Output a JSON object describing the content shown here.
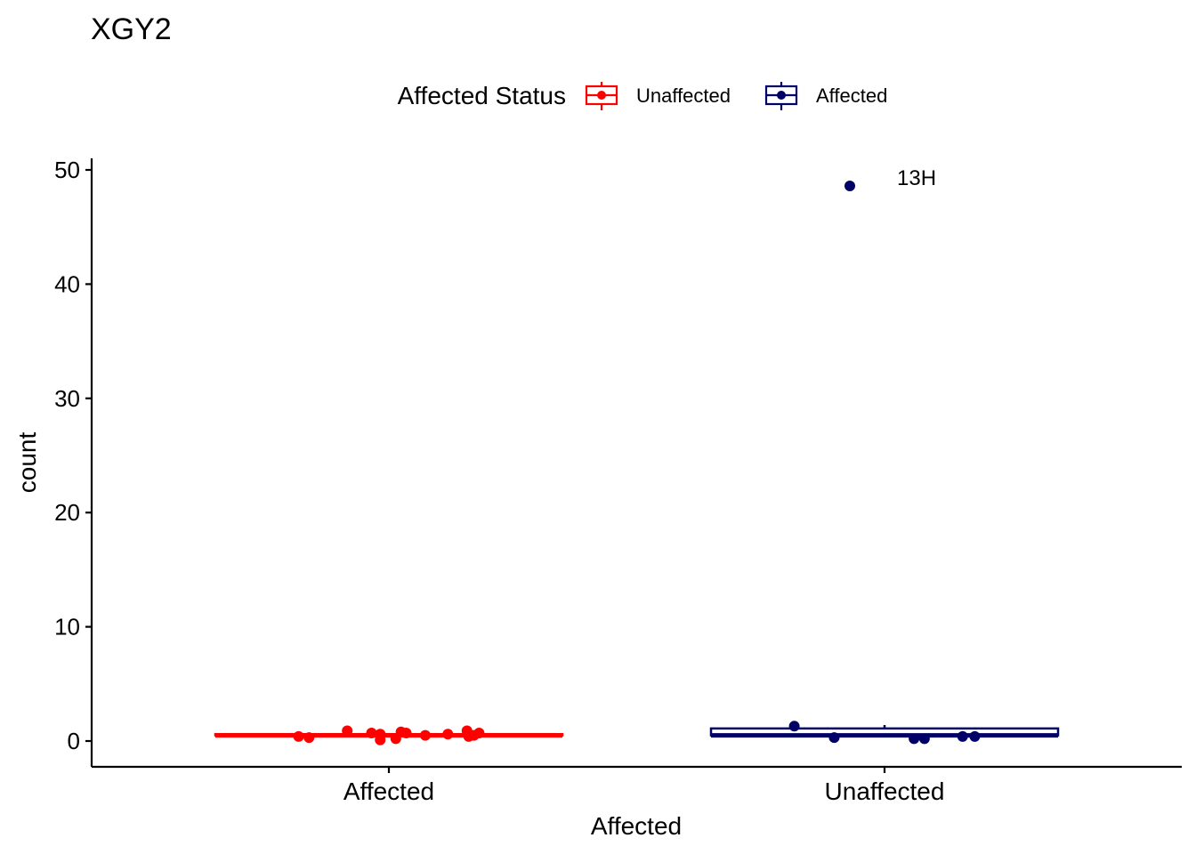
{
  "chart_data": {
    "type": "boxplot",
    "title": "XGY2",
    "xlabel": "Affected",
    "ylabel": "count",
    "ylim": [
      -2.2,
      51
    ],
    "yticks": [
      0,
      10,
      20,
      30,
      40,
      50
    ],
    "categories": [
      "Affected",
      "Unaffected"
    ],
    "legend": {
      "title": "Affected Status",
      "position": "top",
      "entries": [
        {
          "label": "Unaffected",
          "color": "#ff0000"
        },
        {
          "label": "Affected",
          "color": "#000066"
        }
      ]
    },
    "boxes": [
      {
        "category": "Affected",
        "status": "Unaffected",
        "color": "#ff0000",
        "q1": 0.5,
        "median": 0.5,
        "q3": 0.6,
        "whisker_low": 0.5,
        "whisker_high": 0.6
      },
      {
        "category": "Unaffected",
        "status": "Affected",
        "color": "#000066",
        "q1": 0.5,
        "median": 0.5,
        "q3": 1.1,
        "whisker_low": 0.5,
        "whisker_high": 1.4
      }
    ],
    "points": [
      {
        "category": "Affected",
        "jitter": -0.52,
        "y": 0.4,
        "color": "#ff0000"
      },
      {
        "category": "Affected",
        "jitter": -0.46,
        "y": 0.3,
        "color": "#ff0000"
      },
      {
        "category": "Affected",
        "jitter": -0.24,
        "y": 0.9,
        "color": "#ff0000"
      },
      {
        "category": "Affected",
        "jitter": -0.1,
        "y": 0.7,
        "color": "#ff0000"
      },
      {
        "category": "Affected",
        "jitter": -0.05,
        "y": 0.6,
        "color": "#ff0000"
      },
      {
        "category": "Affected",
        "jitter": -0.05,
        "y": 0.1,
        "color": "#ff0000"
      },
      {
        "category": "Affected",
        "jitter": 0.04,
        "y": 0.2,
        "color": "#ff0000"
      },
      {
        "category": "Affected",
        "jitter": 0.07,
        "y": 0.8,
        "color": "#ff0000"
      },
      {
        "category": "Affected",
        "jitter": 0.1,
        "y": 0.7,
        "color": "#ff0000"
      },
      {
        "category": "Affected",
        "jitter": 0.21,
        "y": 0.5,
        "color": "#ff0000"
      },
      {
        "category": "Affected",
        "jitter": 0.34,
        "y": 0.6,
        "color": "#ff0000"
      },
      {
        "category": "Affected",
        "jitter": 0.45,
        "y": 0.9,
        "color": "#ff0000"
      },
      {
        "category": "Affected",
        "jitter": 0.46,
        "y": 0.4,
        "color": "#ff0000"
      },
      {
        "category": "Affected",
        "jitter": 0.49,
        "y": 0.5,
        "color": "#ff0000"
      },
      {
        "category": "Affected",
        "jitter": 0.52,
        "y": 0.7,
        "color": "#ff0000"
      },
      {
        "category": "Unaffected",
        "jitter": -0.52,
        "y": 1.3,
        "color": "#000066"
      },
      {
        "category": "Unaffected",
        "jitter": -0.29,
        "y": 0.3,
        "color": "#000066"
      },
      {
        "category": "Unaffected",
        "jitter": 0.17,
        "y": 0.2,
        "color": "#000066"
      },
      {
        "category": "Unaffected",
        "jitter": 0.23,
        "y": 0.2,
        "color": "#000066"
      },
      {
        "category": "Unaffected",
        "jitter": 0.45,
        "y": 0.4,
        "color": "#000066"
      },
      {
        "category": "Unaffected",
        "jitter": 0.52,
        "y": 0.4,
        "color": "#000066"
      },
      {
        "category": "Unaffected",
        "jitter": -0.2,
        "y": 48.6,
        "color": "#000066",
        "label": "13H"
      }
    ]
  }
}
